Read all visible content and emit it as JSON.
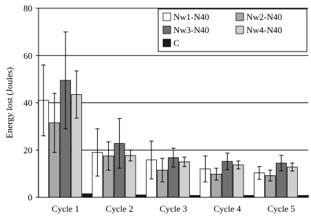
{
  "chart_data": {
    "type": "bar",
    "categories": [
      "Cycle 1",
      "Cycle 2",
      "Cycle 3",
      "Cycle 4",
      "Cycle 5"
    ],
    "series": [
      {
        "name": "Nw1-N40",
        "color": "#ffffff",
        "values": [
          41,
          19,
          15.8,
          12,
          10.3
        ],
        "error": [
          15,
          10,
          8,
          5.5,
          2.7
        ]
      },
      {
        "name": "Nw2-N40",
        "color": "#a8a8a8",
        "values": [
          31.5,
          17.5,
          11.5,
          9.8,
          9.2
        ],
        "error": [
          12.5,
          6,
          5,
          2.5,
          2.3
        ]
      },
      {
        "name": "Nw3-N40",
        "color": "#707070",
        "values": [
          49.5,
          22.8,
          16.8,
          15.2,
          14.5
        ],
        "error": [
          20.5,
          10.5,
          4,
          3.5,
          3.3
        ]
      },
      {
        "name": "Nw4-N40",
        "color": "#cfcfcf",
        "values": [
          43.5,
          17.7,
          15,
          13.7,
          12.8
        ],
        "error": [
          10,
          2.3,
          2,
          1.7,
          1.7
        ]
      },
      {
        "name": "C",
        "color": "#1a1a1a",
        "values": [
          1.5,
          1.0,
          0.8,
          0.8,
          0.8
        ],
        "error": [
          0,
          0,
          0,
          0,
          0
        ]
      }
    ],
    "ylabel": "Energy lost (Joules)",
    "xlabel": "",
    "title": "",
    "ylim": [
      0,
      80
    ],
    "yticks": [
      0,
      20,
      40,
      60,
      80
    ],
    "grid": "horizontal",
    "legend": "top-right"
  }
}
